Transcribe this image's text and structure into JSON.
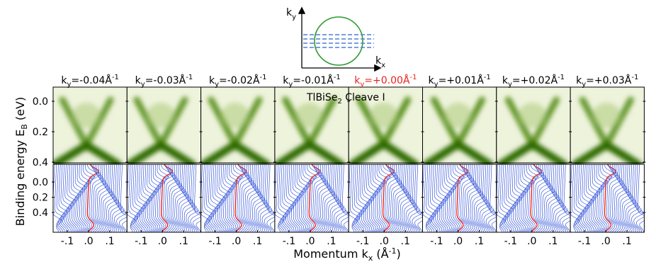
{
  "inset": {
    "ky": {
      "base": "k",
      "sub": "y"
    },
    "kx": {
      "base": "k",
      "sub": "x"
    }
  },
  "annotation": {
    "text": "TlBiSe",
    "sub": "2",
    "rest": " Cleave I"
  },
  "panels": [
    {
      "label": {
        "base": "k",
        "sub": "y",
        "value": "=-0.04Å",
        "sup": "-1"
      },
      "color": "#000000"
    },
    {
      "label": {
        "base": "k",
        "sub": "y",
        "value": "=-0.03Å",
        "sup": "-1"
      },
      "color": "#000000"
    },
    {
      "label": {
        "base": "k",
        "sub": "y",
        "value": "=-0.02Å",
        "sup": "-1"
      },
      "color": "#000000"
    },
    {
      "label": {
        "base": "k",
        "sub": "y",
        "value": "=-0.01Å",
        "sup": "-1"
      },
      "color": "#000000"
    },
    {
      "label": {
        "base": "k",
        "sub": "y",
        "value": "=+0.00Å",
        "sup": "-1"
      },
      "color": "#e8231f"
    },
    {
      "label": {
        "base": "k",
        "sub": "y",
        "value": "=+0.01Å",
        "sup": "-1"
      },
      "color": "#000000"
    },
    {
      "label": {
        "base": "k",
        "sub": "y",
        "value": "=+0.02Å",
        "sup": "-1"
      },
      "color": "#000000"
    },
    {
      "label": {
        "base": "k",
        "sub": "y",
        "value": "=+0.03Å",
        "sup": "-1"
      },
      "color": "#000000"
    }
  ],
  "y_axis": {
    "label": "Binding energy E",
    "sub": "B",
    "unit": " (eV)",
    "top_ticks": [
      "0.0",
      "0.2",
      "0.4"
    ],
    "bottom_ticks": [
      "0.0",
      "0.2",
      "0.4"
    ]
  },
  "x_axis": {
    "label": "Momentum k",
    "sub": "x",
    "unit": " (Å",
    "sup": "-1",
    "close": ")",
    "ticks": [
      "-.1",
      ".0",
      ".1"
    ]
  }
}
